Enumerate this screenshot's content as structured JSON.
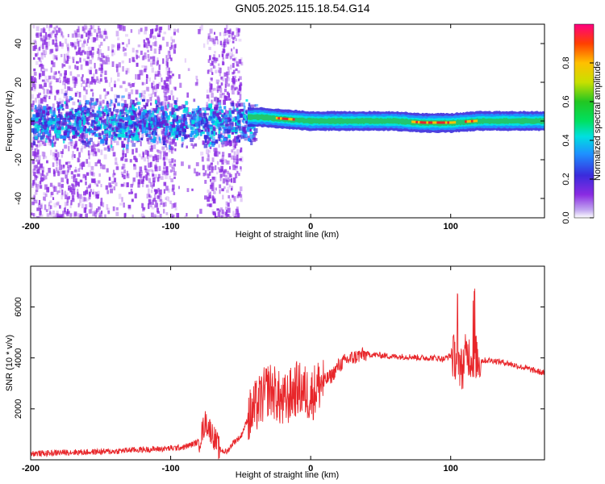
{
  "title": "GN05.2025.115.18.54.G14",
  "colors": {
    "snr_line": "#e8262a",
    "spectrogram_band": "#22c66e",
    "spectrogram_core": "#e8262a",
    "spectrogram_noise": "#8a2be2"
  },
  "colorbar": {
    "label": "Normalized spectral amplitude",
    "ticks": [
      "0.0",
      "0.2",
      "0.4",
      "0.6",
      "0.8"
    ],
    "range": [
      0,
      1
    ]
  },
  "chart_data": [
    {
      "type": "heatmap",
      "title": "",
      "xlabel": "Height of straight line (km)",
      "ylabel": "Frequency (Hz)",
      "xlim": [
        -200,
        167
      ],
      "ylim": [
        -50,
        50
      ],
      "xticks": [
        -200,
        -100,
        0,
        100
      ],
      "yticks": [
        -40,
        -20,
        0,
        20,
        40
      ],
      "ytick_labels": [
        "-40",
        "-20",
        "0",
        "20",
        "40"
      ],
      "xtick_labels": [
        "-200",
        "-100",
        "0",
        "100"
      ],
      "grid": false,
      "description_of_content": "Broadband noise below about -50 km, narrowing to a single tone near 0 Hz above -50 km",
      "ridge": [
        {
          "x": -45,
          "y": 2
        },
        {
          "x": -35,
          "y": 2
        },
        {
          "x": -20,
          "y": 1
        },
        {
          "x": 0,
          "y": 0
        },
        {
          "x": 30,
          "y": 0
        },
        {
          "x": 60,
          "y": 0
        },
        {
          "x": 80,
          "y": -1
        },
        {
          "x": 100,
          "y": -1
        },
        {
          "x": 120,
          "y": 0
        },
        {
          "x": 167,
          "y": 0
        }
      ]
    },
    {
      "type": "line",
      "title": "",
      "xlabel": "Height of straight line (km)",
      "ylabel": "SNR (10 * v/v)",
      "xlim": [
        -200,
        167
      ],
      "ylim": [
        0,
        7600
      ],
      "xticks": [
        -200,
        -100,
        0,
        100
      ],
      "xtick_labels": [
        "-200",
        "-100",
        "0",
        "100"
      ],
      "yticks": [
        2000,
        4000,
        6000
      ],
      "ytick_labels": [
        "2000",
        "4000",
        "6000"
      ],
      "grid": false,
      "series": [
        {
          "x": [
            -200,
            -190,
            -180,
            -170,
            -160,
            -150,
            -140,
            -130,
            -120,
            -110,
            -100,
            -90,
            -80,
            -75,
            -70,
            -65,
            -60,
            -55,
            -50,
            -45,
            -40,
            -35,
            -30,
            -25,
            -20,
            -15,
            -10,
            -5,
            0,
            5,
            10,
            15,
            20,
            25,
            30,
            35,
            40,
            50,
            60,
            70,
            80,
            90,
            95,
            100,
            105,
            108,
            110,
            112,
            115,
            117,
            120,
            125,
            130,
            140,
            150,
            160,
            167
          ],
          "y": [
            250,
            250,
            280,
            300,
            300,
            320,
            330,
            380,
            400,
            420,
            450,
            500,
            700,
            1500,
            1000,
            400,
            300,
            700,
            900,
            1600,
            2000,
            2400,
            2800,
            2600,
            2200,
            2500,
            2800,
            2700,
            2500,
            2900,
            3100,
            3300,
            3700,
            3900,
            4000,
            4100,
            4150,
            4100,
            4050,
            4050,
            4000,
            4000,
            3950,
            4100,
            4000,
            3500,
            4000,
            4200,
            4000,
            4100,
            3900,
            3900,
            3900,
            3800,
            3650,
            3500,
            3400
          ]
        }
      ]
    }
  ]
}
